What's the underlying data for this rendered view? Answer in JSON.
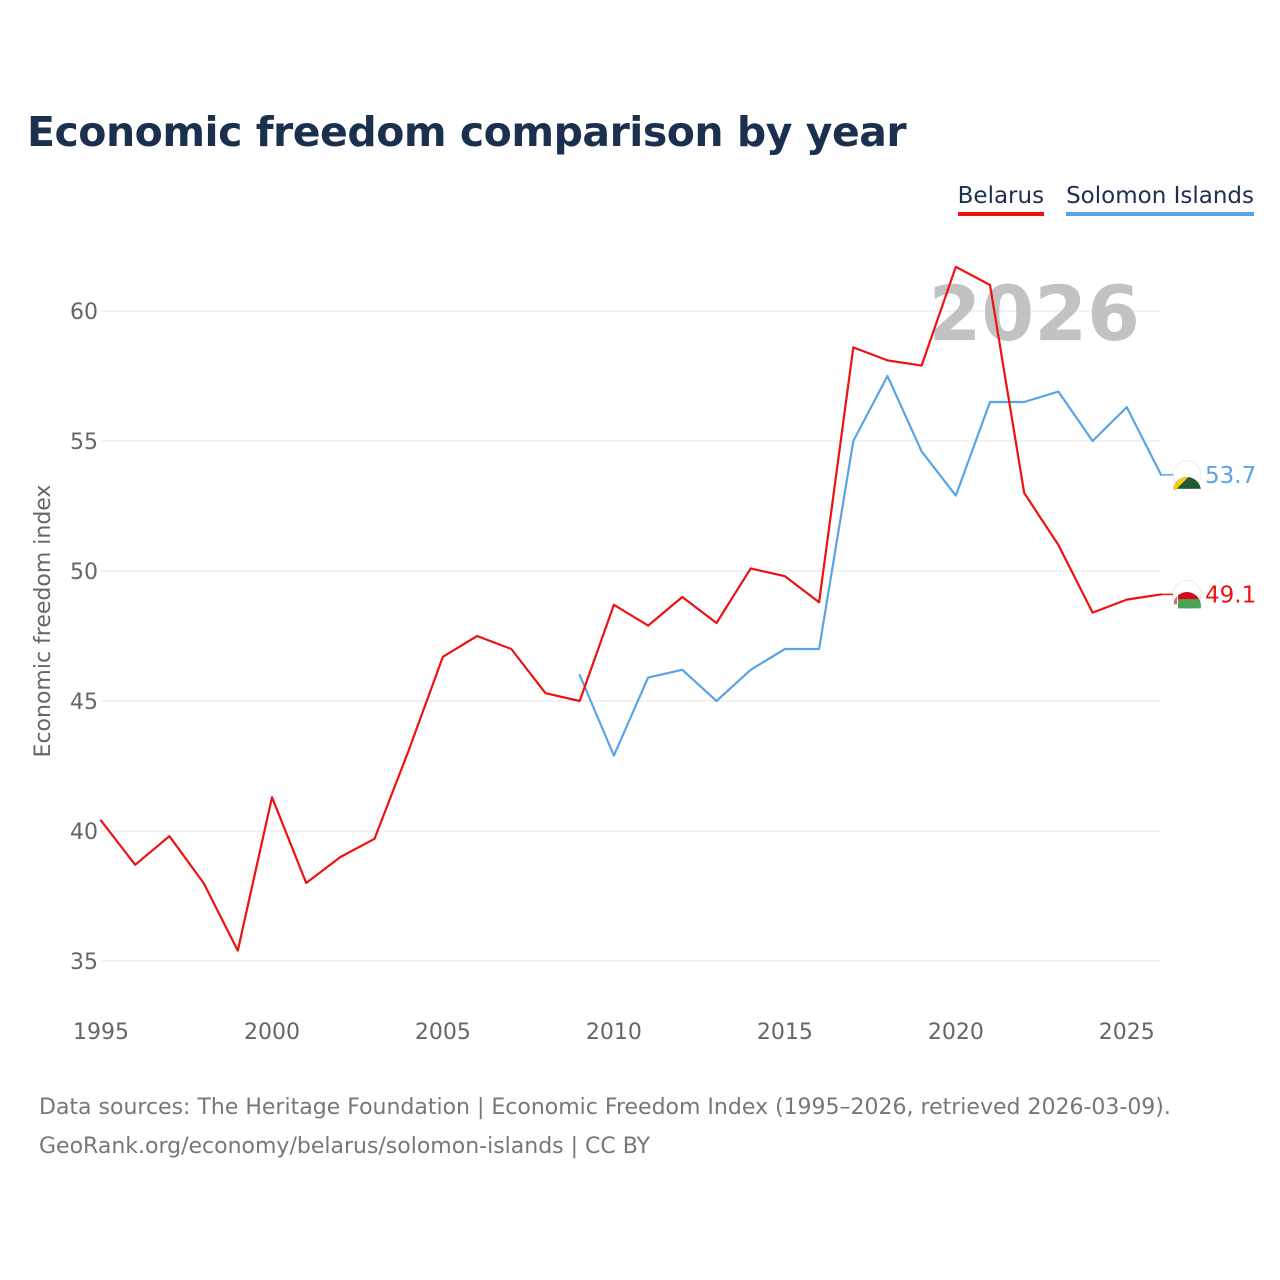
{
  "chart_data": {
    "type": "line",
    "title": "Economic freedom comparison by year",
    "ylabel": "Economic freedom index",
    "xlabel": "",
    "xlim": [
      1995,
      2026
    ],
    "ylim": [
      33.5,
      63.5
    ],
    "x_ticks": [
      1995,
      2000,
      2005,
      2010,
      2015,
      2020,
      2025
    ],
    "y_ticks": [
      35,
      40,
      45,
      50,
      55,
      60
    ],
    "grid": true,
    "legend_position": "top-right",
    "current_year_label": "2026",
    "series": [
      {
        "name": "Belarus",
        "color": "#ee1111",
        "end_label": "49.1",
        "flag_icon": "belarus-flag-icon",
        "x": [
          1995,
          1996,
          1997,
          1998,
          1999,
          2000,
          2001,
          2002,
          2003,
          2004,
          2005,
          2006,
          2007,
          2008,
          2009,
          2010,
          2011,
          2012,
          2013,
          2014,
          2015,
          2016,
          2017,
          2018,
          2019,
          2020,
          2021,
          2022,
          2023,
          2024,
          2025,
          2026
        ],
        "values": [
          40.4,
          38.7,
          39.8,
          38.0,
          35.4,
          41.3,
          38.0,
          39.0,
          39.7,
          43.1,
          46.7,
          47.5,
          47.0,
          45.3,
          45.0,
          48.7,
          47.9,
          49.0,
          48.0,
          50.1,
          49.8,
          48.8,
          58.6,
          58.1,
          57.9,
          61.7,
          61.0,
          53.0,
          51.0,
          48.4,
          48.9,
          49.1
        ]
      },
      {
        "name": "Solomon Islands",
        "color": "#5aa4e6",
        "end_label": "53.7",
        "flag_icon": "solomon-islands-flag-icon",
        "x": [
          2009,
          2010,
          2011,
          2012,
          2013,
          2014,
          2015,
          2016,
          2017,
          2018,
          2019,
          2020,
          2021,
          2022,
          2023,
          2024,
          2025,
          2026
        ],
        "values": [
          46.0,
          42.9,
          45.9,
          46.2,
          45.0,
          46.2,
          47.0,
          47.0,
          55.0,
          57.5,
          54.6,
          52.9,
          56.5,
          56.5,
          56.9,
          55.0,
          56.3,
          53.7
        ]
      }
    ]
  },
  "footer": {
    "line1": "Data sources: The Heritage Foundation | Economic Freedom Index (1995–2026, retrieved 2026-03-09).",
    "line2": "GeoRank.org/economy/belarus/solomon-islands | CC BY"
  }
}
